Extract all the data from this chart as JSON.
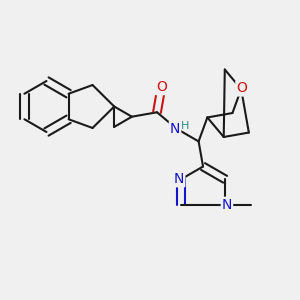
{
  "background_color": "#f0f0f0",
  "bond_color": "#1a1a1a",
  "nitrogen_color": "#1414cc",
  "oxygen_color": "#cc1414",
  "hydrogen_color": "#2e8b8b",
  "line_width": 1.5,
  "figsize": [
    3.0,
    3.0
  ],
  "dpi": 100,
  "xlim": [
    0.0,
    1.0
  ],
  "ylim": [
    0.1,
    1.05
  ]
}
